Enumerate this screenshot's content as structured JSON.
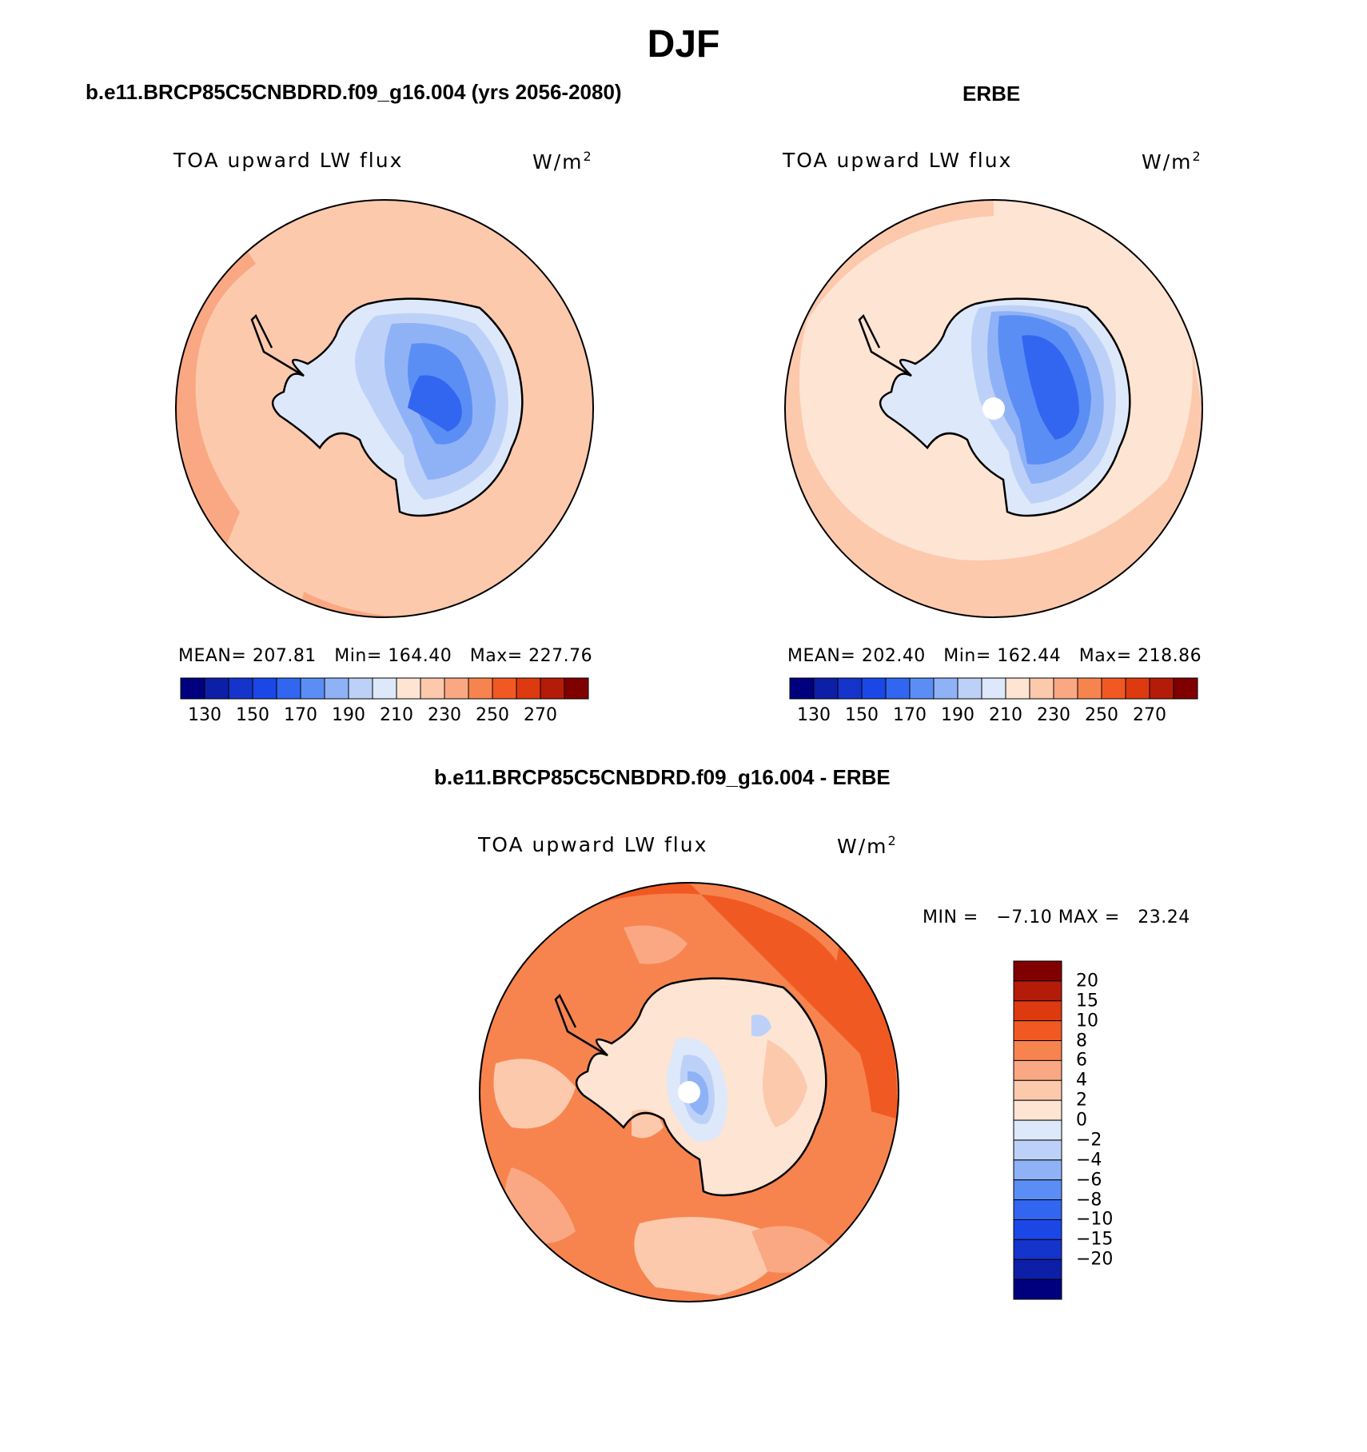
{
  "figure": {
    "title": "DJF"
  },
  "colors": {
    "ocean_model": "#fcc9ad",
    "ocean_model_edge": "#f9a883",
    "ocean_obs": "#fde4d3",
    "ocean_obs_edge": "#fcc9ad",
    "ocean_diff": "#f7844f",
    "ocean_diff_dark": "#f05a22",
    "coastline": "#000000"
  },
  "chart_data": [
    {
      "type": "heatmap",
      "projection": "south-polar-stereographic",
      "header": "b.e11.BRCP85C5CNBDRD.f09_g16.004 (yrs 2056-2080)",
      "variable": "TOA upward LW flux",
      "units": "W/m",
      "units_superscript": "2",
      "stats": {
        "mean_label": "MEAN=",
        "mean": "207.81",
        "min_label": "Min=",
        "min": "164.40",
        "max_label": "Max=",
        "max": "227.76"
      },
      "colorbar": {
        "orientation": "horizontal",
        "colors": [
          "#00007f",
          "#0d1fa6",
          "#1434cc",
          "#1a47e6",
          "#3366f0",
          "#5b8ef5",
          "#8fb2f7",
          "#bdd1f8",
          "#dde8fb",
          "#fde4d3",
          "#fcc9ad",
          "#f9a883",
          "#f7844f",
          "#f05a22",
          "#dd3a10",
          "#b51b09",
          "#800000"
        ],
        "tick_labels": [
          "130",
          "150",
          "170",
          "190",
          "210",
          "230",
          "250",
          "270"
        ]
      }
    },
    {
      "type": "heatmap",
      "projection": "south-polar-stereographic",
      "header": "ERBE",
      "variable": "TOA upward LW flux",
      "units": "W/m",
      "units_superscript": "2",
      "stats": {
        "mean_label": "MEAN=",
        "mean": "202.40",
        "min_label": "Min=",
        "min": "162.44",
        "max_label": "Max=",
        "max": "218.86"
      },
      "colorbar": {
        "orientation": "horizontal",
        "colors": [
          "#00007f",
          "#0d1fa6",
          "#1434cc",
          "#1a47e6",
          "#3366f0",
          "#5b8ef5",
          "#8fb2f7",
          "#bdd1f8",
          "#dde8fb",
          "#fde4d3",
          "#fcc9ad",
          "#f9a883",
          "#f7844f",
          "#f05a22",
          "#dd3a10",
          "#b51b09",
          "#800000"
        ],
        "tick_labels": [
          "130",
          "150",
          "170",
          "190",
          "210",
          "230",
          "250",
          "270"
        ]
      }
    },
    {
      "type": "heatmap",
      "projection": "south-polar-stereographic",
      "header": "b.e11.BRCP85C5CNBDRD.f09_g16.004 - ERBE",
      "variable": "TOA upward LW flux",
      "units": "W/m",
      "units_superscript": "2",
      "stats": {
        "min_label": "MIN =",
        "min": "−7.10",
        "max_label": "MAX =",
        "max": "23.24"
      },
      "colorbar": {
        "orientation": "vertical",
        "colors": [
          "#800000",
          "#b51b09",
          "#dd3a10",
          "#f05a22",
          "#f7844f",
          "#f9a883",
          "#fcc9ad",
          "#fde4d3",
          "#dde8fb",
          "#bdd1f8",
          "#8fb2f7",
          "#5b8ef5",
          "#3366f0",
          "#1a47e6",
          "#1434cc",
          "#0d1fa6",
          "#00007f"
        ],
        "tick_labels": [
          "20",
          "15",
          "10",
          "8",
          "6",
          "4",
          "2",
          "0",
          "−2",
          "−4",
          "−6",
          "−8",
          "−10",
          "−15",
          "−20"
        ]
      }
    }
  ]
}
